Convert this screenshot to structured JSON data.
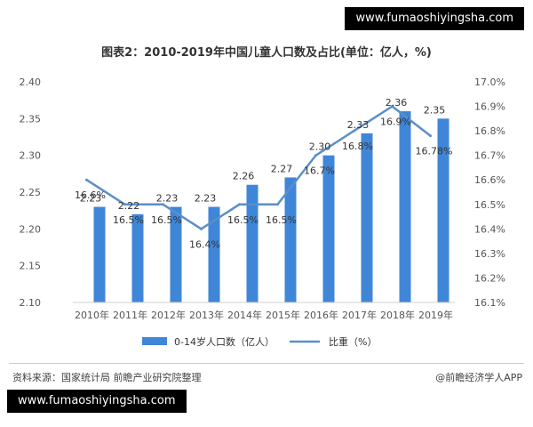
{
  "banner_top": "www.fumaoshiyingsha.com",
  "banner_bottom": "www.fumaoshiyingsha.com",
  "title": "图表2：2010-2019年中国儿童人口数及占比(单位：亿人，%)",
  "source": "资料来源：国家统计局 前瞻产业研究院整理",
  "publisher": "@前瞻经济学人APP",
  "colors": {
    "bar": "#3f86d8",
    "line": "#5b8fc8",
    "axis_text": "#555555",
    "grid": "#e6e6e6"
  },
  "chart_data": {
    "type": "bar",
    "title": "图表2：2010-2019年中国儿童人口数及占比(单位：亿人，%)",
    "categories": [
      "2010年",
      "2011年",
      "2012年",
      "2013年",
      "2014年",
      "2015年",
      "2016年",
      "2017年",
      "2018年",
      "2019年"
    ],
    "series": [
      {
        "name": "0-14岁人口数（亿人）",
        "type": "bar",
        "axis": "left",
        "values": [
          2.23,
          2.22,
          2.23,
          2.23,
          2.26,
          2.27,
          2.3,
          2.33,
          2.36,
          2.35
        ],
        "labels": [
          "2.23",
          "2.22",
          "2.23",
          "2.23",
          "2.26",
          "2.27",
          "2.30",
          "2.33",
          "2.36",
          "2.35"
        ]
      },
      {
        "name": "比重（%）",
        "type": "line",
        "axis": "right",
        "values": [
          16.6,
          16.5,
          16.5,
          16.4,
          16.5,
          16.5,
          16.7,
          16.8,
          16.9,
          16.78
        ],
        "labels": [
          "16.6%",
          "16.5%",
          "16.5%",
          "16.4%",
          "16.5%",
          "16.5%",
          "16.7%",
          "16.8%",
          "16.9%",
          "16.78%"
        ]
      }
    ],
    "y_left": {
      "min": 2.1,
      "max": 2.4,
      "ticks": [
        "2.10",
        "2.15",
        "2.20",
        "2.25",
        "2.30",
        "2.35",
        "2.40"
      ]
    },
    "y_right": {
      "min": 16.1,
      "max": 17.0,
      "ticks": [
        "16.1%",
        "16.2%",
        "16.3%",
        "16.4%",
        "16.5%",
        "16.6%",
        "16.7%",
        "16.8%",
        "16.9%",
        "17.0%"
      ]
    },
    "legend": [
      "0-14岁人口数（亿人）",
      "比重（%）"
    ],
    "legend_position": "bottom",
    "grid": false
  }
}
